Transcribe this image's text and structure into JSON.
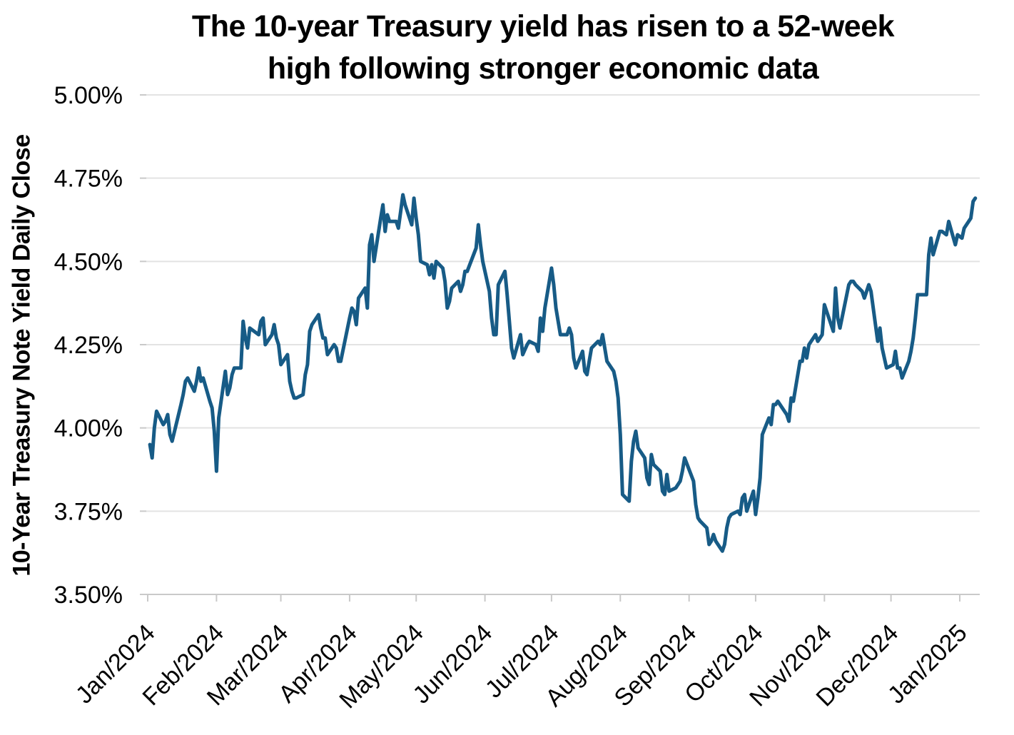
{
  "chart_data": {
    "type": "line",
    "title": "The 10-year Treasury yield has risen to a 52-week high following stronger economic data",
    "title_line1": "The 10-year Treasury yield has risen to a 52-week",
    "title_line2": "high following stronger economic data",
    "ylabel": "10-Year Treasury Note Yield Daily Close",
    "xlabel": "",
    "ylim": [
      3.5,
      5.0
    ],
    "x_range": [
      "2024-01-01",
      "2025-01-10"
    ],
    "grid": "horizontal",
    "legend": "none",
    "y_ticks": [
      {
        "label": "5.00%",
        "value": 5.0
      },
      {
        "label": "4.75%",
        "value": 4.75
      },
      {
        "label": "4.50%",
        "value": 4.5
      },
      {
        "label": "4.25%",
        "value": 4.25
      },
      {
        "label": "4.00%",
        "value": 4.0
      },
      {
        "label": "3.75%",
        "value": 3.75
      },
      {
        "label": "3.50%",
        "value": 3.5
      }
    ],
    "x_ticks": [
      {
        "label": "Jan/2024",
        "date": "2024-01-01"
      },
      {
        "label": "Feb/2024",
        "date": "2024-02-01"
      },
      {
        "label": "Mar/2024",
        "date": "2024-03-01"
      },
      {
        "label": "Apr/2024",
        "date": "2024-04-01"
      },
      {
        "label": "May/2024",
        "date": "2024-05-01"
      },
      {
        "label": "Jun/2024",
        "date": "2024-06-01"
      },
      {
        "label": "Jul/2024",
        "date": "2024-07-01"
      },
      {
        "label": "Aug/2024",
        "date": "2024-08-01"
      },
      {
        "label": "Sep/2024",
        "date": "2024-09-01"
      },
      {
        "label": "Oct/2024",
        "date": "2024-10-01"
      },
      {
        "label": "Nov/2024",
        "date": "2024-11-01"
      },
      {
        "label": "Dec/2024",
        "date": "2024-12-01"
      },
      {
        "label": "Jan/2025",
        "date": "2025-01-01"
      }
    ],
    "colors": {
      "line": "#175B86",
      "gridline": "#E3E3E3",
      "axis": "#C9C9C9",
      "text": "#000000",
      "background": "#FFFFFF"
    },
    "series": [
      {
        "name": "10-Year Treasury Note Yield Daily Close",
        "points": [
          [
            "2024-01-02",
            3.95
          ],
          [
            "2024-01-03",
            3.91
          ],
          [
            "2024-01-04",
            4.0
          ],
          [
            "2024-01-05",
            4.05
          ],
          [
            "2024-01-08",
            4.01
          ],
          [
            "2024-01-09",
            4.02
          ],
          [
            "2024-01-10",
            4.04
          ],
          [
            "2024-01-11",
            3.98
          ],
          [
            "2024-01-12",
            3.96
          ],
          [
            "2024-01-16",
            4.07
          ],
          [
            "2024-01-17",
            4.1
          ],
          [
            "2024-01-18",
            4.14
          ],
          [
            "2024-01-19",
            4.15
          ],
          [
            "2024-01-22",
            4.11
          ],
          [
            "2024-01-23",
            4.14
          ],
          [
            "2024-01-24",
            4.18
          ],
          [
            "2024-01-25",
            4.14
          ],
          [
            "2024-01-26",
            4.15
          ],
          [
            "2024-01-29",
            4.08
          ],
          [
            "2024-01-30",
            4.06
          ],
          [
            "2024-01-31",
            3.99
          ],
          [
            "2024-02-01",
            3.87
          ],
          [
            "2024-02-02",
            4.03
          ],
          [
            "2024-02-05",
            4.17
          ],
          [
            "2024-02-06",
            4.1
          ],
          [
            "2024-02-07",
            4.12
          ],
          [
            "2024-02-08",
            4.16
          ],
          [
            "2024-02-09",
            4.18
          ],
          [
            "2024-02-12",
            4.18
          ],
          [
            "2024-02-13",
            4.32
          ],
          [
            "2024-02-14",
            4.27
          ],
          [
            "2024-02-15",
            4.24
          ],
          [
            "2024-02-16",
            4.3
          ],
          [
            "2024-02-20",
            4.28
          ],
          [
            "2024-02-21",
            4.32
          ],
          [
            "2024-02-22",
            4.33
          ],
          [
            "2024-02-23",
            4.25
          ],
          [
            "2024-02-26",
            4.28
          ],
          [
            "2024-02-27",
            4.31
          ],
          [
            "2024-02-28",
            4.27
          ],
          [
            "2024-02-29",
            4.25
          ],
          [
            "2024-03-01",
            4.19
          ],
          [
            "2024-03-04",
            4.22
          ],
          [
            "2024-03-05",
            4.14
          ],
          [
            "2024-03-06",
            4.11
          ],
          [
            "2024-03-07",
            4.09
          ],
          [
            "2024-03-08",
            4.09
          ],
          [
            "2024-03-11",
            4.1
          ],
          [
            "2024-03-12",
            4.16
          ],
          [
            "2024-03-13",
            4.19
          ],
          [
            "2024-03-14",
            4.29
          ],
          [
            "2024-03-15",
            4.31
          ],
          [
            "2024-03-18",
            4.34
          ],
          [
            "2024-03-19",
            4.3
          ],
          [
            "2024-03-20",
            4.27
          ],
          [
            "2024-03-21",
            4.27
          ],
          [
            "2024-03-22",
            4.22
          ],
          [
            "2024-03-25",
            4.25
          ],
          [
            "2024-03-26",
            4.24
          ],
          [
            "2024-03-27",
            4.2
          ],
          [
            "2024-03-28",
            4.2
          ],
          [
            "2024-04-01",
            4.33
          ],
          [
            "2024-04-02",
            4.36
          ],
          [
            "2024-04-03",
            4.35
          ],
          [
            "2024-04-04",
            4.31
          ],
          [
            "2024-04-05",
            4.39
          ],
          [
            "2024-04-08",
            4.42
          ],
          [
            "2024-04-09",
            4.36
          ],
          [
            "2024-04-10",
            4.55
          ],
          [
            "2024-04-11",
            4.58
          ],
          [
            "2024-04-12",
            4.5
          ],
          [
            "2024-04-15",
            4.63
          ],
          [
            "2024-04-16",
            4.67
          ],
          [
            "2024-04-17",
            4.59
          ],
          [
            "2024-04-18",
            4.64
          ],
          [
            "2024-04-19",
            4.62
          ],
          [
            "2024-04-22",
            4.62
          ],
          [
            "2024-04-23",
            4.6
          ],
          [
            "2024-04-24",
            4.65
          ],
          [
            "2024-04-25",
            4.7
          ],
          [
            "2024-04-26",
            4.67
          ],
          [
            "2024-04-29",
            4.61
          ],
          [
            "2024-04-30",
            4.69
          ],
          [
            "2024-05-01",
            4.63
          ],
          [
            "2024-05-02",
            4.58
          ],
          [
            "2024-05-03",
            4.5
          ],
          [
            "2024-05-06",
            4.49
          ],
          [
            "2024-05-07",
            4.46
          ],
          [
            "2024-05-08",
            4.49
          ],
          [
            "2024-05-09",
            4.45
          ],
          [
            "2024-05-10",
            4.5
          ],
          [
            "2024-05-13",
            4.48
          ],
          [
            "2024-05-14",
            4.44
          ],
          [
            "2024-05-15",
            4.36
          ],
          [
            "2024-05-16",
            4.38
          ],
          [
            "2024-05-17",
            4.42
          ],
          [
            "2024-05-20",
            4.44
          ],
          [
            "2024-05-21",
            4.41
          ],
          [
            "2024-05-22",
            4.43
          ],
          [
            "2024-05-23",
            4.47
          ],
          [
            "2024-05-24",
            4.47
          ],
          [
            "2024-05-28",
            4.54
          ],
          [
            "2024-05-29",
            4.61
          ],
          [
            "2024-05-30",
            4.55
          ],
          [
            "2024-05-31",
            4.5
          ],
          [
            "2024-06-03",
            4.41
          ],
          [
            "2024-06-04",
            4.33
          ],
          [
            "2024-06-05",
            4.28
          ],
          [
            "2024-06-06",
            4.28
          ],
          [
            "2024-06-07",
            4.43
          ],
          [
            "2024-06-10",
            4.47
          ],
          [
            "2024-06-11",
            4.4
          ],
          [
            "2024-06-12",
            4.32
          ],
          [
            "2024-06-13",
            4.24
          ],
          [
            "2024-06-14",
            4.21
          ],
          [
            "2024-06-17",
            4.28
          ],
          [
            "2024-06-18",
            4.22
          ],
          [
            "2024-06-20",
            4.25
          ],
          [
            "2024-06-21",
            4.26
          ],
          [
            "2024-06-24",
            4.25
          ],
          [
            "2024-06-25",
            4.23
          ],
          [
            "2024-06-26",
            4.33
          ],
          [
            "2024-06-27",
            4.29
          ],
          [
            "2024-06-28",
            4.36
          ],
          [
            "2024-07-01",
            4.48
          ],
          [
            "2024-07-02",
            4.43
          ],
          [
            "2024-07-03",
            4.36
          ],
          [
            "2024-07-05",
            4.28
          ],
          [
            "2024-07-08",
            4.28
          ],
          [
            "2024-07-09",
            4.3
          ],
          [
            "2024-07-10",
            4.28
          ],
          [
            "2024-07-11",
            4.21
          ],
          [
            "2024-07-12",
            4.18
          ],
          [
            "2024-07-15",
            4.23
          ],
          [
            "2024-07-16",
            4.17
          ],
          [
            "2024-07-17",
            4.16
          ],
          [
            "2024-07-18",
            4.2
          ],
          [
            "2024-07-19",
            4.24
          ],
          [
            "2024-07-22",
            4.26
          ],
          [
            "2024-07-23",
            4.25
          ],
          [
            "2024-07-24",
            4.28
          ],
          [
            "2024-07-25",
            4.24
          ],
          [
            "2024-07-26",
            4.2
          ],
          [
            "2024-07-29",
            4.17
          ],
          [
            "2024-07-30",
            4.14
          ],
          [
            "2024-07-31",
            4.09
          ],
          [
            "2024-08-01",
            3.98
          ],
          [
            "2024-08-02",
            3.8
          ],
          [
            "2024-08-05",
            3.78
          ],
          [
            "2024-08-06",
            3.9
          ],
          [
            "2024-08-07",
            3.96
          ],
          [
            "2024-08-08",
            3.99
          ],
          [
            "2024-08-09",
            3.94
          ],
          [
            "2024-08-12",
            3.91
          ],
          [
            "2024-08-13",
            3.85
          ],
          [
            "2024-08-14",
            3.83
          ],
          [
            "2024-08-15",
            3.92
          ],
          [
            "2024-08-16",
            3.89
          ],
          [
            "2024-08-19",
            3.87
          ],
          [
            "2024-08-20",
            3.81
          ],
          [
            "2024-08-21",
            3.8
          ],
          [
            "2024-08-22",
            3.86
          ],
          [
            "2024-08-23",
            3.81
          ],
          [
            "2024-08-26",
            3.82
          ],
          [
            "2024-08-27",
            3.83
          ],
          [
            "2024-08-28",
            3.84
          ],
          [
            "2024-08-29",
            3.87
          ],
          [
            "2024-08-30",
            3.91
          ],
          [
            "2024-09-03",
            3.84
          ],
          [
            "2024-09-04",
            3.77
          ],
          [
            "2024-09-05",
            3.73
          ],
          [
            "2024-09-06",
            3.72
          ],
          [
            "2024-09-09",
            3.7
          ],
          [
            "2024-09-10",
            3.65
          ],
          [
            "2024-09-11",
            3.66
          ],
          [
            "2024-09-12",
            3.68
          ],
          [
            "2024-09-13",
            3.66
          ],
          [
            "2024-09-16",
            3.63
          ],
          [
            "2024-09-17",
            3.65
          ],
          [
            "2024-09-18",
            3.7
          ],
          [
            "2024-09-19",
            3.73
          ],
          [
            "2024-09-20",
            3.74
          ],
          [
            "2024-09-23",
            3.75
          ],
          [
            "2024-09-24",
            3.74
          ],
          [
            "2024-09-25",
            3.79
          ],
          [
            "2024-09-26",
            3.8
          ],
          [
            "2024-09-27",
            3.75
          ],
          [
            "2024-09-30",
            3.81
          ],
          [
            "2024-10-01",
            3.74
          ],
          [
            "2024-10-02",
            3.79
          ],
          [
            "2024-10-03",
            3.85
          ],
          [
            "2024-10-04",
            3.98
          ],
          [
            "2024-10-07",
            4.03
          ],
          [
            "2024-10-08",
            4.01
          ],
          [
            "2024-10-09",
            4.07
          ],
          [
            "2024-10-10",
            4.07
          ],
          [
            "2024-10-11",
            4.08
          ],
          [
            "2024-10-15",
            4.04
          ],
          [
            "2024-10-16",
            4.02
          ],
          [
            "2024-10-17",
            4.09
          ],
          [
            "2024-10-18",
            4.08
          ],
          [
            "2024-10-21",
            4.2
          ],
          [
            "2024-10-22",
            4.2
          ],
          [
            "2024-10-23",
            4.24
          ],
          [
            "2024-10-24",
            4.21
          ],
          [
            "2024-10-25",
            4.25
          ],
          [
            "2024-10-28",
            4.28
          ],
          [
            "2024-10-29",
            4.26
          ],
          [
            "2024-10-30",
            4.27
          ],
          [
            "2024-10-31",
            4.28
          ],
          [
            "2024-11-01",
            4.37
          ],
          [
            "2024-11-04",
            4.31
          ],
          [
            "2024-11-05",
            4.29
          ],
          [
            "2024-11-06",
            4.42
          ],
          [
            "2024-11-07",
            4.33
          ],
          [
            "2024-11-08",
            4.3
          ],
          [
            "2024-11-12",
            4.43
          ],
          [
            "2024-11-13",
            4.44
          ],
          [
            "2024-11-14",
            4.44
          ],
          [
            "2024-11-15",
            4.43
          ],
          [
            "2024-11-18",
            4.41
          ],
          [
            "2024-11-19",
            4.39
          ],
          [
            "2024-11-20",
            4.41
          ],
          [
            "2024-11-21",
            4.43
          ],
          [
            "2024-11-22",
            4.41
          ],
          [
            "2024-11-25",
            4.26
          ],
          [
            "2024-11-26",
            4.3
          ],
          [
            "2024-11-27",
            4.24
          ],
          [
            "2024-11-29",
            4.18
          ],
          [
            "2024-12-02",
            4.19
          ],
          [
            "2024-12-03",
            4.23
          ],
          [
            "2024-12-04",
            4.18
          ],
          [
            "2024-12-05",
            4.18
          ],
          [
            "2024-12-06",
            4.15
          ],
          [
            "2024-12-09",
            4.2
          ],
          [
            "2024-12-10",
            4.23
          ],
          [
            "2024-12-11",
            4.27
          ],
          [
            "2024-12-12",
            4.33
          ],
          [
            "2024-12-13",
            4.4
          ],
          [
            "2024-12-16",
            4.4
          ],
          [
            "2024-12-17",
            4.4
          ],
          [
            "2024-12-18",
            4.52
          ],
          [
            "2024-12-19",
            4.57
          ],
          [
            "2024-12-20",
            4.52
          ],
          [
            "2024-12-23",
            4.59
          ],
          [
            "2024-12-24",
            4.59
          ],
          [
            "2024-12-26",
            4.58
          ],
          [
            "2024-12-27",
            4.62
          ],
          [
            "2024-12-30",
            4.55
          ],
          [
            "2024-12-31",
            4.58
          ],
          [
            "2025-01-02",
            4.57
          ],
          [
            "2025-01-03",
            4.6
          ],
          [
            "2025-01-06",
            4.63
          ],
          [
            "2025-01-07",
            4.68
          ],
          [
            "2025-01-08",
            4.69
          ]
        ]
      }
    ]
  }
}
